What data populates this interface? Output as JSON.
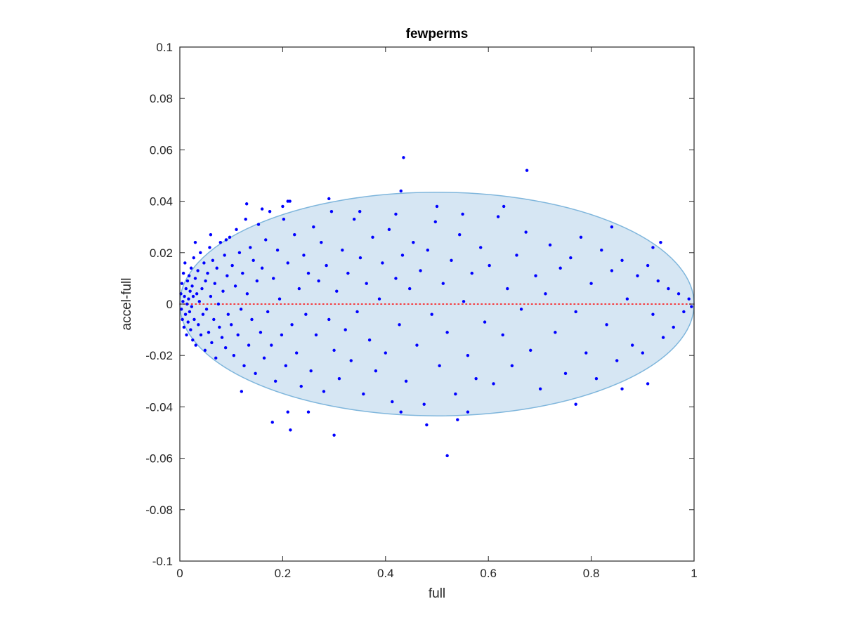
{
  "chart_data": {
    "type": "scatter",
    "title": "fewperms",
    "xlabel": "full",
    "ylabel": "accel-full",
    "xlim": [
      0,
      1
    ],
    "ylim": [
      -0.1,
      0.1
    ],
    "xticks": [
      0,
      0.2,
      0.4,
      0.6,
      0.8,
      1
    ],
    "xtick_labels": [
      "0",
      "0.2",
      "0.4",
      "0.6",
      "0.8",
      "1"
    ],
    "yticks": [
      -0.1,
      -0.08,
      -0.06,
      -0.04,
      -0.02,
      0,
      0.02,
      0.04,
      0.06,
      0.08,
      0.1
    ],
    "ytick_labels": [
      "-0.1",
      "-0.08",
      "-0.06",
      "-0.04",
      "-0.02",
      "0",
      "0.02",
      "0.04",
      "0.06",
      "0.08",
      "0.1"
    ],
    "grid": false,
    "reference_line": {
      "y": 0,
      "color": "#ff0000",
      "style": "dotted"
    },
    "ellipse": {
      "cx": 0.5,
      "cy": 0,
      "rx": 0.5,
      "ry": 0.0435,
      "fill": "#d6e6f3",
      "stroke": "#7fb6dc"
    },
    "series": [
      {
        "color": "#0000ff",
        "points": [
          [
            0.002,
            0.004
          ],
          [
            0.003,
            -0.002
          ],
          [
            0.004,
            0.008
          ],
          [
            0.005,
            -0.006
          ],
          [
            0.006,
            0.001
          ],
          [
            0.007,
            0.012
          ],
          [
            0.008,
            -0.009
          ],
          [
            0.009,
            0.003
          ],
          [
            0.01,
            0.016
          ],
          [
            0.011,
            -0.004
          ],
          [
            0.012,
            0.006
          ],
          [
            0.013,
            -0.012
          ],
          [
            0.014,
            0.0
          ],
          [
            0.015,
            0.009
          ],
          [
            0.016,
            -0.007
          ],
          [
            0.017,
            0.002
          ],
          [
            0.018,
            0.011
          ],
          [
            0.019,
            -0.003
          ],
          [
            0.02,
            0.005
          ],
          [
            0.021,
            -0.01
          ],
          [
            0.022,
            0.014
          ],
          [
            0.023,
            -0.001
          ],
          [
            0.024,
            0.007
          ],
          [
            0.025,
            -0.014
          ],
          [
            0.026,
            0.003
          ],
          [
            0.027,
            0.018
          ],
          [
            0.028,
            -0.006
          ],
          [
            0.03,
            0.01
          ],
          [
            0.031,
            -0.016
          ],
          [
            0.033,
            0.004
          ],
          [
            0.035,
            0.013
          ],
          [
            0.036,
            -0.008
          ],
          [
            0.038,
            0.001
          ],
          [
            0.04,
            0.02
          ],
          [
            0.041,
            -0.012
          ],
          [
            0.043,
            0.006
          ],
          [
            0.045,
            -0.004
          ],
          [
            0.047,
            0.016
          ],
          [
            0.049,
            -0.018
          ],
          [
            0.05,
            0.009
          ],
          [
            0.052,
            -0.002
          ],
          [
            0.054,
            0.012
          ],
          [
            0.056,
            -0.011
          ],
          [
            0.058,
            0.022
          ],
          [
            0.06,
            0.003
          ],
          [
            0.062,
            -0.015
          ],
          [
            0.064,
            0.017
          ],
          [
            0.066,
            -0.006
          ],
          [
            0.068,
            0.008
          ],
          [
            0.07,
            -0.021
          ],
          [
            0.072,
            0.014
          ],
          [
            0.075,
            0.0
          ],
          [
            0.077,
            -0.009
          ],
          [
            0.079,
            0.024
          ],
          [
            0.082,
            -0.013
          ],
          [
            0.084,
            0.005
          ],
          [
            0.087,
            0.019
          ],
          [
            0.089,
            -0.017
          ],
          [
            0.092,
            0.011
          ],
          [
            0.094,
            -0.004
          ],
          [
            0.097,
            0.026
          ],
          [
            0.1,
            -0.008
          ],
          [
            0.102,
            0.015
          ],
          [
            0.105,
            -0.02
          ],
          [
            0.108,
            0.007
          ],
          [
            0.11,
            0.029
          ],
          [
            0.113,
            -0.012
          ],
          [
            0.116,
            0.02
          ],
          [
            0.119,
            -0.002
          ],
          [
            0.122,
            0.012
          ],
          [
            0.125,
            -0.024
          ],
          [
            0.128,
            0.033
          ],
          [
            0.131,
            0.004
          ],
          [
            0.134,
            -0.016
          ],
          [
            0.137,
            0.022
          ],
          [
            0.14,
            -0.006
          ],
          [
            0.143,
            0.017
          ],
          [
            0.147,
            -0.027
          ],
          [
            0.15,
            0.009
          ],
          [
            0.153,
            0.031
          ],
          [
            0.157,
            -0.011
          ],
          [
            0.16,
            0.014
          ],
          [
            0.164,
            -0.021
          ],
          [
            0.167,
            0.025
          ],
          [
            0.171,
            -0.003
          ],
          [
            0.175,
            0.036
          ],
          [
            0.178,
            -0.016
          ],
          [
            0.182,
            0.01
          ],
          [
            0.186,
            -0.03
          ],
          [
            0.19,
            0.021
          ],
          [
            0.194,
            0.002
          ],
          [
            0.198,
            -0.012
          ],
          [
            0.202,
            0.033
          ],
          [
            0.206,
            -0.024
          ],
          [
            0.21,
            0.016
          ],
          [
            0.214,
            0.04
          ],
          [
            0.218,
            -0.008
          ],
          [
            0.223,
            0.027
          ],
          [
            0.227,
            -0.019
          ],
          [
            0.232,
            0.006
          ],
          [
            0.236,
            -0.032
          ],
          [
            0.241,
            0.019
          ],
          [
            0.245,
            -0.004
          ],
          [
            0.25,
            0.012
          ],
          [
            0.255,
            -0.026
          ],
          [
            0.26,
            0.03
          ],
          [
            0.265,
            -0.012
          ],
          [
            0.27,
            0.009
          ],
          [
            0.275,
            0.024
          ],
          [
            0.28,
            -0.034
          ],
          [
            0.285,
            0.015
          ],
          [
            0.29,
            -0.006
          ],
          [
            0.295,
            0.036
          ],
          [
            0.3,
            -0.018
          ],
          [
            0.305,
            0.005
          ],
          [
            0.31,
            -0.029
          ],
          [
            0.316,
            0.021
          ],
          [
            0.322,
            -0.01
          ],
          [
            0.327,
            0.012
          ],
          [
            0.333,
            -0.022
          ],
          [
            0.339,
            0.033
          ],
          [
            0.345,
            -0.003
          ],
          [
            0.351,
            0.018
          ],
          [
            0.357,
            -0.035
          ],
          [
            0.363,
            0.008
          ],
          [
            0.369,
            -0.014
          ],
          [
            0.375,
            0.026
          ],
          [
            0.381,
            -0.026
          ],
          [
            0.388,
            0.002
          ],
          [
            0.394,
            0.016
          ],
          [
            0.4,
            -0.019
          ],
          [
            0.407,
            0.029
          ],
          [
            0.413,
            -0.038
          ],
          [
            0.42,
            0.01
          ],
          [
            0.427,
            -0.008
          ],
          [
            0.433,
            0.019
          ],
          [
            0.44,
            -0.03
          ],
          [
            0.447,
            0.006
          ],
          [
            0.454,
            0.024
          ],
          [
            0.461,
            -0.016
          ],
          [
            0.468,
            0.013
          ],
          [
            0.475,
            -0.039
          ],
          [
            0.482,
            0.021
          ],
          [
            0.49,
            -0.004
          ],
          [
            0.497,
            0.032
          ],
          [
            0.505,
            -0.024
          ],
          [
            0.512,
            0.008
          ],
          [
            0.52,
            -0.011
          ],
          [
            0.528,
            0.017
          ],
          [
            0.536,
            -0.035
          ],
          [
            0.544,
            0.027
          ],
          [
            0.552,
            0.001
          ],
          [
            0.56,
            -0.02
          ],
          [
            0.568,
            0.012
          ],
          [
            0.576,
            -0.029
          ],
          [
            0.585,
            0.022
          ],
          [
            0.593,
            -0.007
          ],
          [
            0.602,
            0.015
          ],
          [
            0.61,
            -0.031
          ],
          [
            0.619,
            0.034
          ],
          [
            0.628,
            -0.012
          ],
          [
            0.637,
            0.006
          ],
          [
            0.646,
            -0.024
          ],
          [
            0.655,
            0.019
          ],
          [
            0.664,
            -0.002
          ],
          [
            0.673,
            0.028
          ],
          [
            0.682,
            -0.018
          ],
          [
            0.692,
            0.011
          ],
          [
            0.701,
            -0.033
          ],
          [
            0.711,
            0.004
          ],
          [
            0.72,
            0.023
          ],
          [
            0.73,
            -0.011
          ],
          [
            0.74,
            0.014
          ],
          [
            0.75,
            -0.027
          ],
          [
            0.76,
            0.018
          ],
          [
            0.77,
            -0.003
          ],
          [
            0.78,
            0.026
          ],
          [
            0.79,
            -0.019
          ],
          [
            0.8,
            0.008
          ],
          [
            0.81,
            -0.029
          ],
          [
            0.82,
            0.021
          ],
          [
            0.83,
            -0.008
          ],
          [
            0.84,
            0.013
          ],
          [
            0.85,
            -0.022
          ],
          [
            0.86,
            0.017
          ],
          [
            0.87,
            0.002
          ],
          [
            0.88,
            -0.016
          ],
          [
            0.89,
            0.011
          ],
          [
            0.9,
            -0.019
          ],
          [
            0.91,
            0.015
          ],
          [
            0.92,
            -0.004
          ],
          [
            0.93,
            0.009
          ],
          [
            0.94,
            -0.013
          ],
          [
            0.95,
            0.006
          ],
          [
            0.96,
            -0.009
          ],
          [
            0.97,
            0.004
          ],
          [
            0.98,
            -0.003
          ],
          [
            0.99,
            0.002
          ],
          [
            0.995,
            -0.001
          ],
          [
            0.03,
            0.024
          ],
          [
            0.06,
            0.027
          ],
          [
            0.09,
            0.025
          ],
          [
            0.13,
            0.039
          ],
          [
            0.16,
            0.037
          ],
          [
            0.2,
            0.038
          ],
          [
            0.21,
            0.04
          ],
          [
            0.29,
            0.041
          ],
          [
            0.35,
            0.036
          ],
          [
            0.42,
            0.035
          ],
          [
            0.43,
            0.044
          ],
          [
            0.5,
            0.038
          ],
          [
            0.55,
            0.035
          ],
          [
            0.63,
            0.038
          ],
          [
            0.84,
            0.03
          ],
          [
            0.92,
            0.022
          ],
          [
            0.935,
            0.024
          ],
          [
            0.12,
            -0.034
          ],
          [
            0.18,
            -0.046
          ],
          [
            0.21,
            -0.042
          ],
          [
            0.215,
            -0.049
          ],
          [
            0.25,
            -0.042
          ],
          [
            0.3,
            -0.051
          ],
          [
            0.43,
            -0.042
          ],
          [
            0.48,
            -0.047
          ],
          [
            0.54,
            -0.045
          ],
          [
            0.56,
            -0.042
          ],
          [
            0.77,
            -0.039
          ],
          [
            0.86,
            -0.033
          ],
          [
            0.91,
            -0.031
          ],
          [
            0.435,
            0.057
          ],
          [
            0.675,
            0.052
          ],
          [
            0.52,
            -0.059
          ]
        ]
      }
    ]
  }
}
